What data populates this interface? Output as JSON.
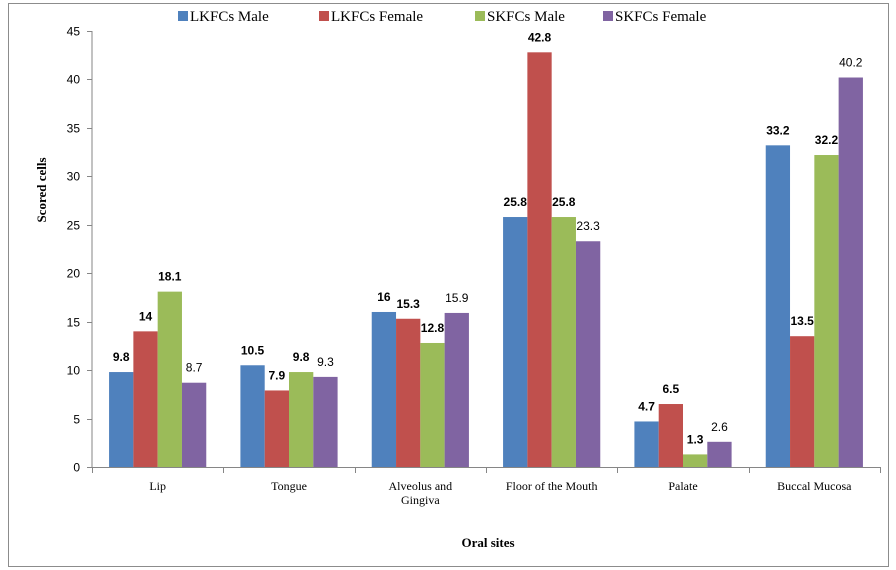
{
  "chart_data": {
    "type": "bar",
    "categories": [
      [
        "Lip"
      ],
      [
        "Tongue"
      ],
      [
        "Alveolus and",
        "Gingiva"
      ],
      [
        "Floor of the Mouth"
      ],
      [
        "Palate"
      ],
      [
        "Buccal Mucosa"
      ]
    ],
    "series": [
      {
        "name": "LKFCs Male",
        "color": "#4f81bd",
        "values": [
          9.8,
          10.5,
          16,
          25.8,
          4.7,
          33.2
        ],
        "labels": [
          "9.8",
          "10.5",
          "16",
          "25.8",
          "4.7",
          "33.2"
        ],
        "label_bold": true
      },
      {
        "name": "LKFCs Female",
        "color": "#c0504d",
        "values": [
          14,
          7.9,
          15.3,
          42.8,
          6.5,
          13.5
        ],
        "labels": [
          "14",
          "7.9",
          "15.3",
          "42.8",
          "6.5",
          "13.5"
        ],
        "label_bold": true
      },
      {
        "name": "SKFCs Male",
        "color": "#9bbb59",
        "values": [
          18.1,
          9.8,
          12.8,
          25.8,
          1.3,
          32.2
        ],
        "labels": [
          "18.1",
          "9.8",
          "12.8",
          "25.8",
          "1.3",
          "32.2"
        ],
        "label_bold": true
      },
      {
        "name": "SKFCs Female",
        "color": "#8064a2",
        "values": [
          8.7,
          9.3,
          15.9,
          23.3,
          2.6,
          40.2
        ],
        "labels": [
          "8.7",
          "9.3",
          "15.9",
          "23.3",
          "2.6",
          "40.2"
        ],
        "label_bold": false
      }
    ],
    "xlabel": "Oral sites",
    "ylabel": "Scored cells",
    "ylim": [
      0,
      45
    ],
    "yticks": [
      0,
      5,
      10,
      15,
      20,
      25,
      30,
      35,
      40,
      45
    ],
    "grid": false,
    "legend_position": "top"
  }
}
